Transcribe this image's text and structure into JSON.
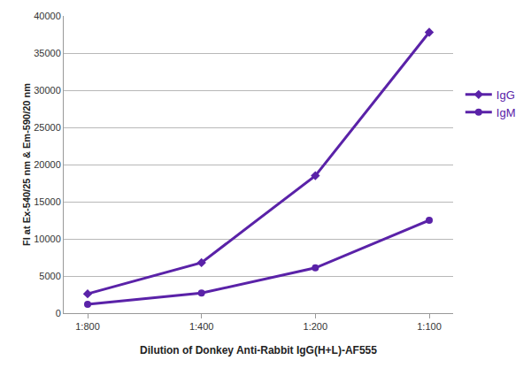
{
  "chart_data": {
    "type": "line",
    "x_label": "Dilution of Donkey Anti-Rabbit IgG(H+L)-AF555",
    "y_label": "FI at Ex-540/25 nm & Em-590/20 nm",
    "categories": [
      "1:800",
      "1:400",
      "1:200",
      "1:100"
    ],
    "series": [
      {
        "name": "IgG",
        "color": "#5a22a8",
        "marker": "diamond",
        "values": [
          2600,
          6800,
          18500,
          37800
        ]
      },
      {
        "name": "IgM",
        "color": "#5a22a8",
        "marker": "circle",
        "values": [
          1200,
          2700,
          6100,
          12500
        ]
      }
    ],
    "ylim": [
      0,
      40000
    ],
    "yticks": [
      0,
      5000,
      10000,
      15000,
      20000,
      25000,
      30000,
      35000,
      40000
    ],
    "grid": true,
    "legend": "right"
  }
}
